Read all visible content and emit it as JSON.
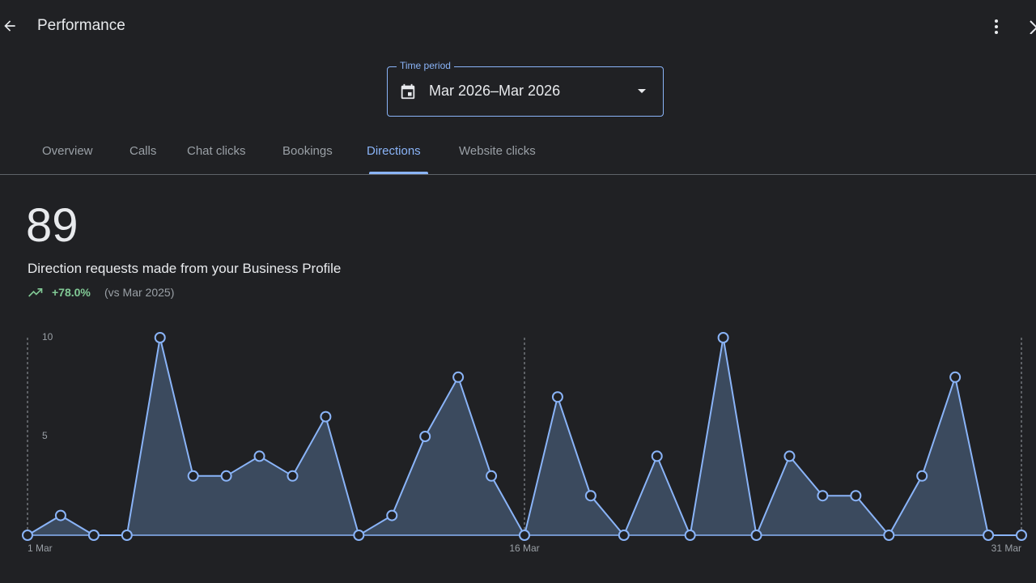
{
  "header": {
    "title": "Performance"
  },
  "time_period": {
    "label": "Time period",
    "value": "Mar 2026–Mar 2026"
  },
  "tabs": [
    "Overview",
    "Calls",
    "Chat clicks",
    "Bookings",
    "Directions",
    "Website clicks"
  ],
  "summary": {
    "total": 89,
    "description": "Direction requests made from your Business Profile",
    "change": "+78.0%",
    "comparison": "(vs Mar 2025)"
  },
  "chart_data": {
    "type": "line",
    "area": true,
    "color": "#8ab4f8",
    "fill": "#3b4a5e",
    "categories": [
      "1 Mar",
      null,
      null,
      null,
      null,
      null,
      null,
      null,
      null,
      null,
      null,
      null,
      null,
      null,
      null,
      "16 Mar",
      null,
      null,
      null,
      null,
      null,
      null,
      null,
      null,
      null,
      null,
      null,
      null,
      null,
      null,
      "31 Mar"
    ],
    "values": [
      0,
      1,
      0,
      0,
      10,
      3,
      3,
      4,
      3,
      6,
      0,
      1,
      5,
      8,
      3,
      0,
      7,
      2,
      0,
      4,
      0,
      10,
      0,
      4,
      2,
      2,
      0,
      3,
      8,
      0,
      0
    ],
    "ylim": [
      0,
      10
    ],
    "yticks": [
      5,
      10
    ]
  }
}
